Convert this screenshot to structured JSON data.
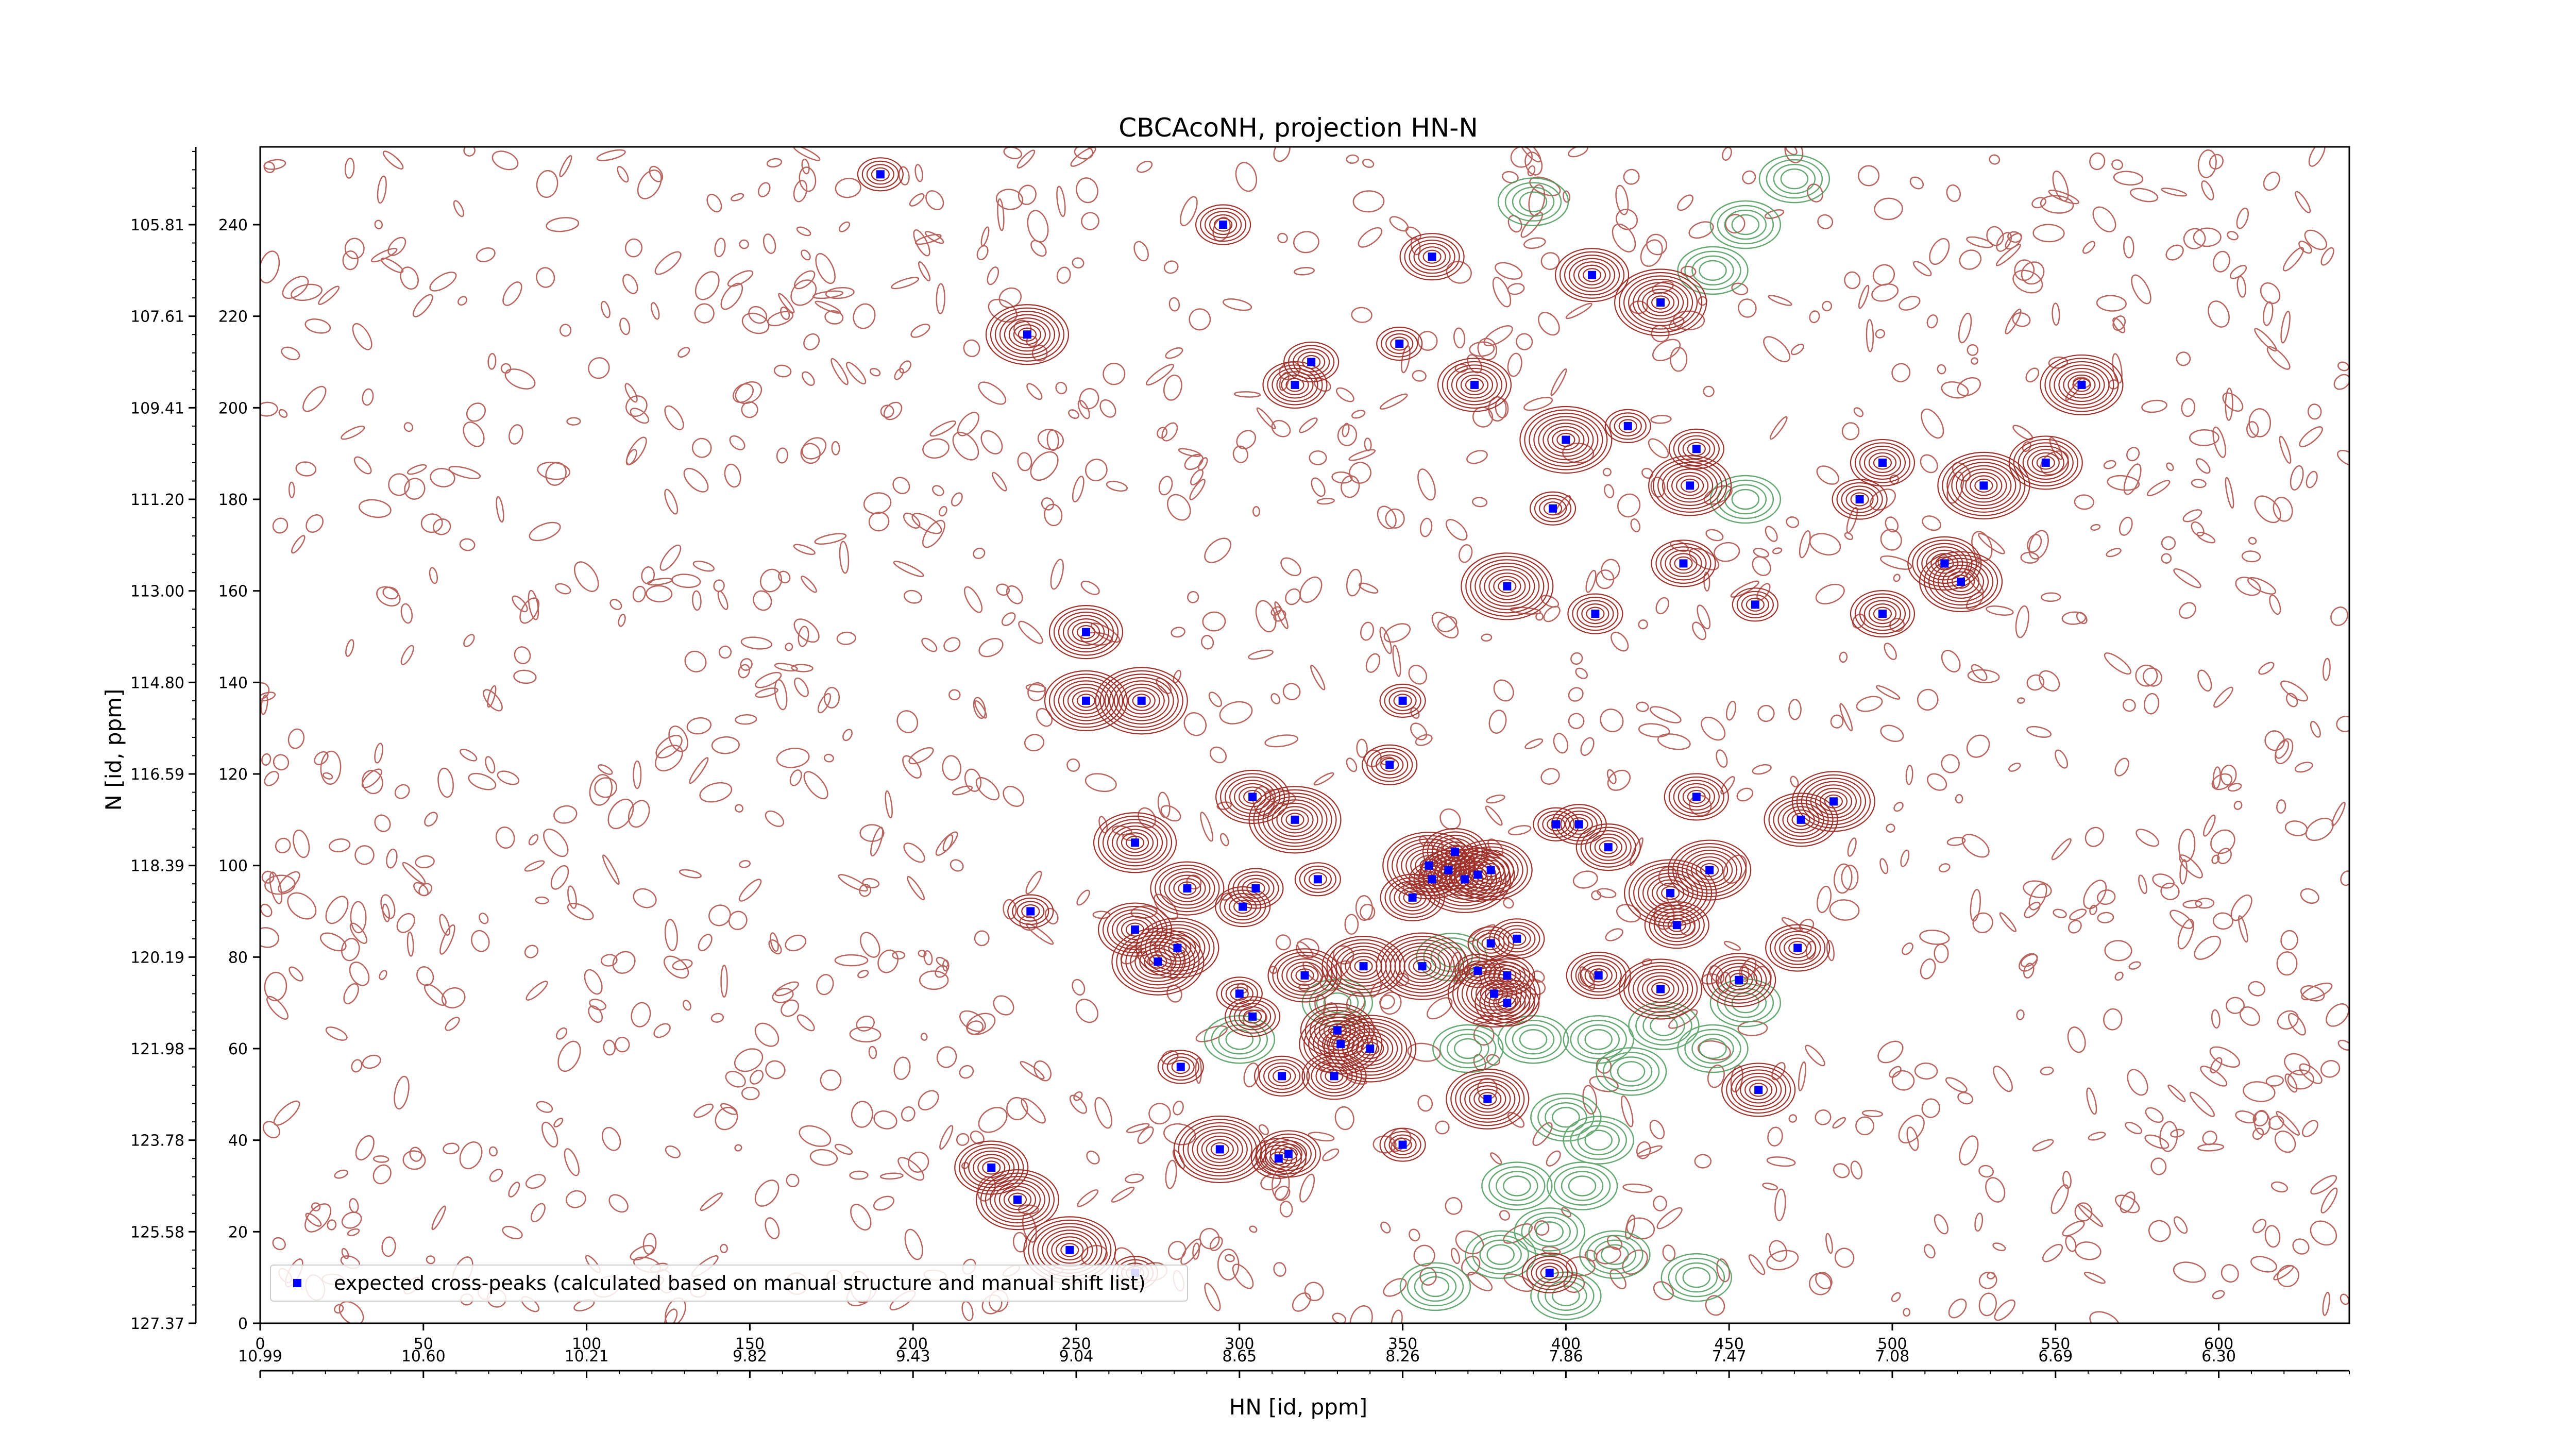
{
  "chart_data": {
    "type": "scatter",
    "title": "CBCAcoNH, projection HN-N",
    "xlabel": "HN [id, ppm]",
    "ylabel": "N [id, ppm]",
    "x_index_range": [
      0,
      640
    ],
    "y_index_range": [
      0,
      257
    ],
    "x_index_ticks": [
      "0",
      "50",
      "100",
      "150",
      "200",
      "250",
      "300",
      "350",
      "400",
      "450",
      "500",
      "550",
      "600"
    ],
    "x_ppm_tick_labels": [
      "10.99",
      "10.60",
      "10.21",
      "9.82",
      "9.43",
      "9.04",
      "8.65",
      "8.26",
      "7.86",
      "7.47",
      "7.08",
      "6.69",
      "6.30"
    ],
    "y_index_ticks": [
      "0",
      "20",
      "40",
      "60",
      "80",
      "100",
      "120",
      "140",
      "160",
      "180",
      "200",
      "220",
      "240"
    ],
    "y_ppm_tick_labels": [
      "127.37",
      "125.58",
      "123.78",
      "121.98",
      "120.19",
      "118.39",
      "116.59",
      "114.80",
      "113.00",
      "111.20",
      "109.41",
      "107.61",
      "105.81"
    ],
    "legend_position": "lower-left",
    "series": [
      {
        "name": "expected cross-peaks (calculated based on manual structure and manual shift list)",
        "color": "#0000ff",
        "marker": "square",
        "points": [
          [
            190,
            251
          ],
          [
            295,
            240
          ],
          [
            359,
            233
          ],
          [
            408,
            229
          ],
          [
            235,
            216
          ],
          [
            429,
            223
          ],
          [
            349,
            214
          ],
          [
            322,
            210
          ],
          [
            317,
            205
          ],
          [
            372,
            205
          ],
          [
            558,
            205
          ],
          [
            400,
            193
          ],
          [
            419,
            196
          ],
          [
            440,
            191
          ],
          [
            497,
            188
          ],
          [
            547,
            188
          ],
          [
            438,
            183
          ],
          [
            528,
            183
          ],
          [
            396,
            178
          ],
          [
            490,
            180
          ],
          [
            436,
            166
          ],
          [
            516,
            166
          ],
          [
            521,
            162
          ],
          [
            382,
            161
          ],
          [
            458,
            157
          ],
          [
            409,
            155
          ],
          [
            497,
            155
          ],
          [
            253,
            151
          ],
          [
            253,
            136
          ],
          [
            270,
            136
          ],
          [
            350,
            136
          ],
          [
            346,
            122
          ],
          [
            440,
            115
          ],
          [
            304,
            115
          ],
          [
            482,
            114
          ],
          [
            317,
            110
          ],
          [
            397,
            109
          ],
          [
            404,
            109
          ],
          [
            413,
            104
          ],
          [
            472,
            110
          ],
          [
            268,
            105
          ],
          [
            358,
            100
          ],
          [
            359,
            97
          ],
          [
            364,
            99
          ],
          [
            366,
            103
          ],
          [
            373,
            98
          ],
          [
            377,
            99
          ],
          [
            369,
            97
          ],
          [
            324,
            97
          ],
          [
            305,
            95
          ],
          [
            353,
            93
          ],
          [
            284,
            95
          ],
          [
            444,
            99
          ],
          [
            432,
            94
          ],
          [
            236,
            90
          ],
          [
            301,
            91
          ],
          [
            434,
            87
          ],
          [
            268,
            86
          ],
          [
            281,
            82
          ],
          [
            275,
            79
          ],
          [
            377,
            83
          ],
          [
            385,
            84
          ],
          [
            471,
            82
          ],
          [
            320,
            76
          ],
          [
            338,
            78
          ],
          [
            356,
            78
          ],
          [
            373,
            77
          ],
          [
            382,
            76
          ],
          [
            410,
            76
          ],
          [
            453,
            75
          ],
          [
            429,
            73
          ],
          [
            378,
            72
          ],
          [
            300,
            72
          ],
          [
            304,
            67
          ],
          [
            382,
            70
          ],
          [
            330,
            64
          ],
          [
            331,
            61
          ],
          [
            340,
            60
          ],
          [
            282,
            56
          ],
          [
            313,
            54
          ],
          [
            329,
            54
          ],
          [
            459,
            51
          ],
          [
            376,
            49
          ],
          [
            294,
            38
          ],
          [
            350,
            39
          ],
          [
            312,
            36
          ],
          [
            315,
            37
          ],
          [
            224,
            34
          ],
          [
            232,
            27
          ],
          [
            248,
            16
          ],
          [
            268,
            11
          ],
          [
            395,
            11
          ]
        ]
      }
    ]
  }
}
